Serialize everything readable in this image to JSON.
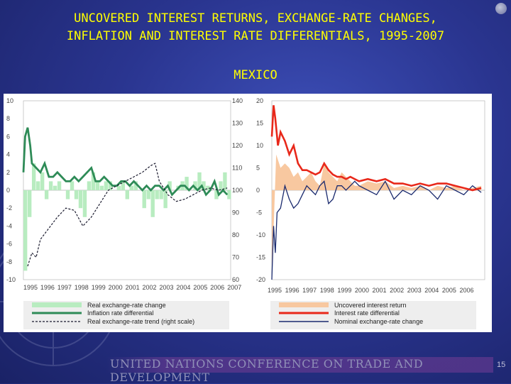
{
  "slide": {
    "title_line1": "UNCOVERED INTEREST RETURNS, EXCHANGE-RATE CHANGES,",
    "title_line2": "INFLATION AND INTEREST RATE DIFFERENTIALS, 1995-2007",
    "country": "MEXICO",
    "footer": "UNITED NATIONS CONFERENCE ON TRADE AND DEVELOPMENT",
    "page_number": "15",
    "colors": {
      "title": "#ffff00",
      "background": "#2a3590"
    }
  },
  "chart_data": [
    {
      "type": "bar",
      "x_ticks": [
        "1995",
        "1996",
        "1997",
        "1998",
        "1999",
        "2000",
        "2001",
        "2002",
        "2003",
        "2004",
        "2005",
        "2006",
        "2007"
      ],
      "y_left_ticks": [
        "10",
        "8",
        "6",
        "4",
        "2",
        "0",
        "-2",
        "-4",
        "-6",
        "-8",
        "-10"
      ],
      "y_right_ticks": [
        "140",
        "130",
        "120",
        "110",
        "100",
        "90",
        "80",
        "70",
        "60"
      ],
      "ylim_left": [
        -10,
        10
      ],
      "ylim_right": [
        60,
        140
      ],
      "legend": [
        "Real exchange-rate change",
        "Inflation rate differential",
        "Real exchange-rate trend (right scale)"
      ],
      "grid": false,
      "series": [
        {
          "name": "Real exchange-rate change",
          "kind": "bar",
          "color": "#b8ecc0",
          "x": [
            1995.0,
            1995.25,
            1995.5,
            1995.75,
            1996.0,
            1996.25,
            1996.5,
            1996.75,
            1997.0,
            1997.25,
            1997.5,
            1997.75,
            1998.0,
            1998.25,
            1998.5,
            1998.75,
            1999.0,
            1999.25,
            1999.5,
            1999.75,
            2000.0,
            2000.25,
            2000.5,
            2000.75,
            2001.0,
            2001.25,
            2001.5,
            2001.75,
            2002.0,
            2002.25,
            2002.5,
            2002.75,
            2003.0,
            2003.25,
            2003.5,
            2003.75,
            2004.0,
            2004.25,
            2004.5,
            2004.75,
            2005.0,
            2005.25,
            2005.5,
            2005.75,
            2006.0,
            2006.25,
            2006.5,
            2006.75,
            2007.0
          ],
          "values": [
            -9,
            -3,
            3,
            1,
            2,
            -1,
            1,
            0.5,
            1,
            0,
            -1,
            1,
            -1,
            -2,
            -3,
            1,
            2,
            1,
            0.5,
            1,
            1,
            0,
            0.5,
            1,
            -1,
            0.5,
            1,
            0,
            -2,
            -1,
            -3,
            -1,
            -1,
            -2,
            1,
            0,
            0.5,
            1,
            1.5,
            0,
            1,
            2,
            1,
            0.5,
            0,
            -1,
            1,
            2,
            -1
          ]
        },
        {
          "name": "Inflation rate differential",
          "kind": "line",
          "color": "#2e8b57",
          "x": [
            1995.0,
            1995.1,
            1995.25,
            1995.4,
            1995.5,
            1995.75,
            1996.0,
            1996.25,
            1996.5,
            1996.75,
            1997.0,
            1997.25,
            1997.5,
            1997.75,
            1998.0,
            1998.25,
            1998.5,
            1998.75,
            1999.0,
            1999.25,
            1999.5,
            1999.75,
            2000.0,
            2000.25,
            2000.5,
            2000.75,
            2001.0,
            2001.25,
            2001.5,
            2001.75,
            2002.0,
            2002.25,
            2002.5,
            2002.75,
            2003.0,
            2003.25,
            2003.5,
            2003.75,
            2004.0,
            2004.25,
            2004.5,
            2004.75,
            2005.0,
            2005.25,
            2005.5,
            2005.75,
            2006.0,
            2006.25,
            2006.5,
            2006.75,
            2007.0
          ],
          "values": [
            2,
            6,
            7,
            5,
            3,
            2.5,
            2,
            3,
            1.5,
            1.5,
            2,
            1.5,
            1,
            1,
            1.5,
            1,
            1.5,
            2,
            2.5,
            1,
            1,
            1.5,
            1,
            0.5,
            0.5,
            1,
            1,
            0.5,
            1,
            0.5,
            0,
            0.5,
            0,
            0.5,
            0.5,
            0,
            0.5,
            -0.5,
            0,
            0.5,
            0.5,
            0,
            0.5,
            0,
            0.5,
            -0.5,
            0,
            1,
            -0.5,
            0,
            -0.5
          ]
        },
        {
          "name": "Real exchange-rate trend (right scale)",
          "kind": "dashed",
          "color": "#1a1a2e",
          "x": [
            1995.25,
            1995.5,
            1995.75,
            1996.0,
            1996.5,
            1997.0,
            1997.5,
            1998.0,
            1998.5,
            1999.0,
            1999.5,
            2000.0,
            2000.5,
            2001.0,
            2001.5,
            2002.0,
            2002.5,
            2002.75,
            2003.0,
            2003.5,
            2004.0,
            2004.5,
            2005.0,
            2005.5,
            2006.0,
            2006.5,
            2007.0
          ],
          "values": [
            66,
            72,
            70,
            78,
            83,
            88,
            92,
            91,
            84,
            88,
            94,
            100,
            102,
            104,
            106,
            108,
            111,
            112,
            104,
            98,
            95,
            96,
            98,
            100,
            101,
            100,
            101
          ]
        }
      ]
    },
    {
      "type": "area",
      "x_ticks": [
        "1995",
        "1996",
        "1997",
        "1998",
        "1999",
        "2000",
        "2001",
        "2002",
        "2003",
        "2004",
        "2005",
        "2006"
      ],
      "y_ticks": [
        "20",
        "15",
        "10",
        "5",
        "0",
        "-5",
        "-10",
        "-15",
        "-20"
      ],
      "ylim": [
        -20,
        20
      ],
      "legend": [
        "Uncovered interest return",
        "Interest rate differential",
        "Nominal exchange-rate change"
      ],
      "grid": false,
      "series": [
        {
          "name": "Uncovered interest return",
          "kind": "area",
          "color": "#f8c8a0",
          "x": [
            1995.0,
            1995.25,
            1995.5,
            1995.75,
            1996.0,
            1996.25,
            1996.5,
            1996.75,
            1997.0,
            1997.25,
            1997.5,
            1997.75,
            1998.0,
            1998.25,
            1998.5,
            1998.75,
            1999.0,
            1999.25,
            1999.5,
            1999.75,
            2000.0,
            2000.5,
            2001.0,
            2001.5,
            2002.0,
            2002.5,
            2003.0,
            2003.5,
            2004.0,
            2004.5,
            2005.0,
            2005.5,
            2006.0,
            2006.5,
            2007.0
          ],
          "values": [
            -20,
            8,
            5,
            6,
            5,
            3,
            4,
            2,
            3,
            4,
            2,
            1,
            6,
            4,
            3,
            2,
            4,
            3,
            2,
            1,
            1,
            2,
            1.5,
            2,
            0.5,
            1,
            0.5,
            1,
            0,
            1,
            0.5,
            1,
            0,
            0.5,
            1
          ]
        },
        {
          "name": "Interest rate differential",
          "kind": "line",
          "color": "#e8281a",
          "x": [
            1995.0,
            1995.1,
            1995.2,
            1995.35,
            1995.5,
            1995.75,
            1996.0,
            1996.25,
            1996.5,
            1996.75,
            1997.0,
            1997.25,
            1997.5,
            1997.75,
            1998.0,
            1998.25,
            1998.5,
            1998.75,
            1999.0,
            1999.25,
            1999.5,
            1999.75,
            2000.0,
            2000.5,
            2001.0,
            2001.5,
            2002.0,
            2002.5,
            2003.0,
            2003.5,
            2004.0,
            2004.5,
            2005.0,
            2005.5,
            2006.0,
            2006.5,
            2007.0
          ],
          "values": [
            12,
            19,
            16,
            10,
            13,
            11,
            8,
            10,
            6,
            4.5,
            4.5,
            4,
            3.5,
            4,
            6,
            4.5,
            3.5,
            3,
            3,
            2.5,
            3,
            2.5,
            2,
            2.5,
            2,
            2.5,
            1.5,
            1.5,
            1,
            1.5,
            1,
            1.5,
            1.5,
            1,
            0.5,
            0,
            0.5
          ]
        },
        {
          "name": "Nominal exchange-rate change",
          "kind": "line",
          "color": "#1a2a6e",
          "x": [
            1995.0,
            1995.1,
            1995.2,
            1995.3,
            1995.5,
            1995.75,
            1996.0,
            1996.25,
            1996.5,
            1996.75,
            1997.0,
            1997.25,
            1997.5,
            1997.75,
            1998.0,
            1998.25,
            1998.5,
            1998.75,
            1999.0,
            1999.25,
            1999.5,
            1999.75,
            2000.0,
            2000.5,
            2001.0,
            2001.5,
            2002.0,
            2002.5,
            2003.0,
            2003.5,
            2004.0,
            2004.5,
            2005.0,
            2005.5,
            2006.0,
            2006.5,
            2007.0
          ],
          "values": [
            -20,
            -8,
            -14,
            -5,
            -4,
            1,
            -2,
            -4,
            -3,
            -1,
            1,
            0,
            -1,
            1,
            2,
            -3,
            -2,
            1,
            1,
            0,
            1,
            2,
            1,
            0,
            -1,
            2,
            -2,
            0,
            -1,
            1,
            0,
            -2,
            1,
            0,
            -1,
            1,
            -0.5
          ]
        }
      ]
    }
  ]
}
